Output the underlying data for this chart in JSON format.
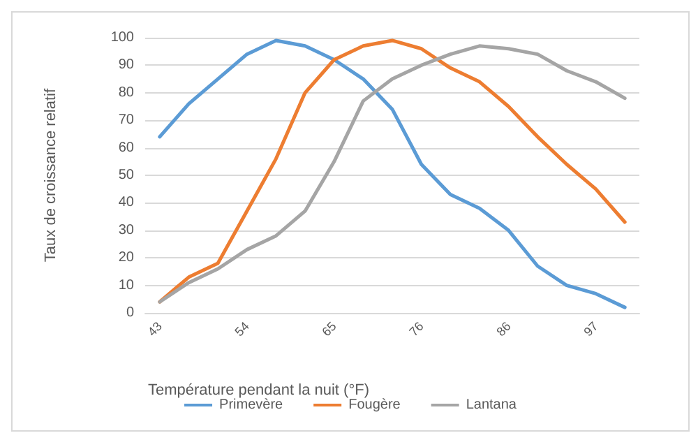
{
  "chart_data": {
    "type": "line",
    "xlabel": "Température pendant la nuit (°F)",
    "ylabel": "Taux de croissance relatif",
    "categories": [
      "43",
      null,
      null,
      "54",
      null,
      null,
      "65",
      null,
      null,
      "76",
      null,
      null,
      "86",
      null,
      null,
      "97",
      null
    ],
    "series": [
      {
        "name": "Primevère",
        "color": "#5b9bd5",
        "values": [
          64,
          76,
          85,
          94,
          99,
          97,
          92,
          85,
          74,
          54,
          43,
          38,
          30,
          17,
          10,
          7,
          2
        ]
      },
      {
        "name": "Fougère",
        "color": "#ed7d31",
        "values": [
          4,
          13,
          18,
          37,
          56,
          80,
          92,
          97,
          99,
          96,
          89,
          84,
          75,
          64,
          54,
          45,
          33
        ]
      },
      {
        "name": "Lantana",
        "color": "#a5a5a5",
        "values": [
          4,
          11,
          16,
          23,
          28,
          37,
          55,
          77,
          85,
          90,
          94,
          97,
          96,
          94,
          88,
          84,
          78
        ]
      }
    ],
    "ylim": [
      0,
      100
    ],
    "yticks": [
      0,
      10,
      20,
      30,
      40,
      50,
      60,
      70,
      80,
      90,
      100
    ],
    "grid": "y",
    "legend": "bottom",
    "marker": "none",
    "line_style": "solid"
  }
}
